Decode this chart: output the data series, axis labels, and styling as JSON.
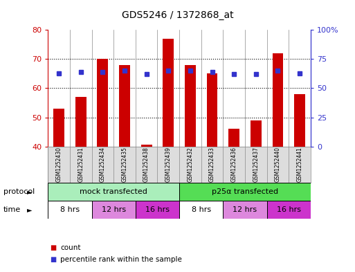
{
  "title": "GDS5246 / 1372868_at",
  "samples": [
    "GSM1252430",
    "GSM1252431",
    "GSM1252434",
    "GSM1252435",
    "GSM1252438",
    "GSM1252439",
    "GSM1252432",
    "GSM1252433",
    "GSM1252436",
    "GSM1252437",
    "GSM1252440",
    "GSM1252441"
  ],
  "counts": [
    53,
    57,
    70,
    68,
    40.5,
    77,
    68,
    65,
    46,
    49,
    72,
    58
  ],
  "percentiles": [
    63,
    64,
    64,
    65,
    62,
    65,
    65,
    64,
    62,
    62,
    65,
    63
  ],
  "ymin": 40,
  "ymax": 80,
  "yticks_left": [
    40,
    50,
    60,
    70,
    80
  ],
  "yticks_right": [
    0,
    25,
    50,
    75,
    100
  ],
  "bar_color": "#cc0000",
  "dot_color": "#3333cc",
  "protocol_labels": [
    "mock transfected",
    "p25α transfected"
  ],
  "protocol_color_mock": "#aaeebb",
  "protocol_color_p25": "#55dd55",
  "time_labels": [
    "8 hrs",
    "12 hrs",
    "16 hrs",
    "8 hrs",
    "12 hrs",
    "16 hrs"
  ],
  "time_colors": [
    "#ffffff",
    "#dd88dd",
    "#cc33cc",
    "#ffffff",
    "#dd88dd",
    "#cc33cc"
  ],
  "legend_count_color": "#cc0000",
  "legend_pct_color": "#3333cc",
  "bg_color": "#ffffff",
  "sample_bg": "#dddddd",
  "grid_color": "#000000"
}
